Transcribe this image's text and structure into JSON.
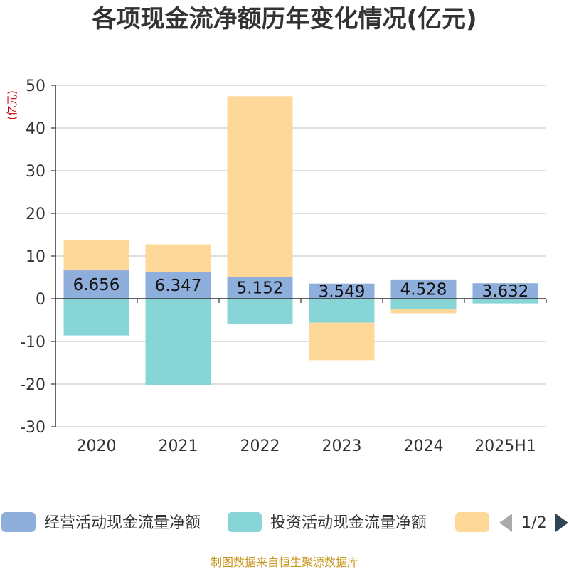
{
  "chart_data": {
    "type": "bar",
    "stacked": true,
    "title": "各项现金流净额历年变化情况(亿元)",
    "unit_label": "(亿元)",
    "categories": [
      "2020",
      "2021",
      "2022",
      "2023",
      "2024",
      "2025H1"
    ],
    "ylim": [
      -30,
      50
    ],
    "yticks": [
      50,
      40,
      30,
      20,
      10,
      0,
      -10,
      -20,
      -30
    ],
    "grid": true,
    "legend_position": "bottom",
    "series": [
      {
        "name": "经营活动现金流量净额",
        "color": "#8eaedb",
        "values": [
          6.656,
          6.347,
          5.152,
          3.549,
          4.528,
          3.632
        ],
        "labels": [
          "6.656",
          "6.347",
          "5.152",
          "3.549",
          "4.528",
          "3.632"
        ]
      },
      {
        "name": "投资活动现金流量净额",
        "color": "#88d5d8",
        "values": [
          -8.6,
          -20.2,
          -6.0,
          -5.6,
          -2.4,
          -1.1
        ]
      },
      {
        "name": "",
        "color": "#fed898",
        "values": [
          7.1,
          6.4,
          42.3,
          -8.8,
          -1.0,
          0
        ]
      }
    ]
  },
  "legend": {
    "page": "1/2"
  },
  "footer": "制图数据来自恒生聚源数据库"
}
